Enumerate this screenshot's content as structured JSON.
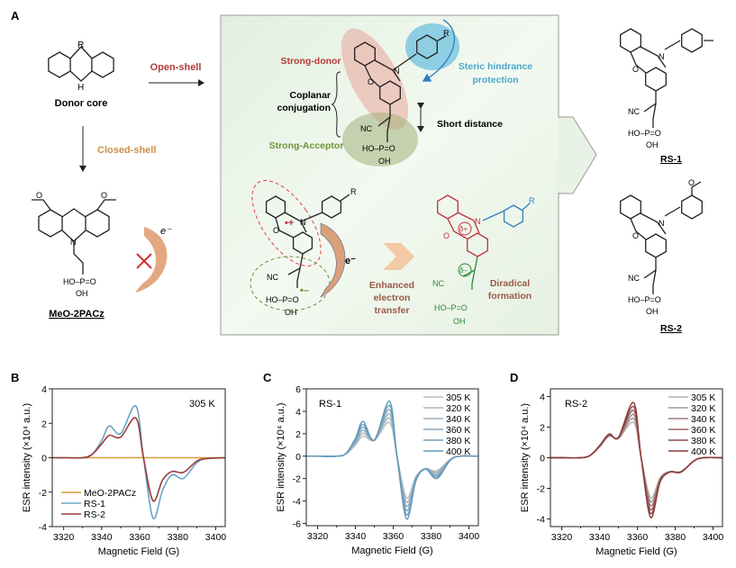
{
  "panel_a": {
    "letter": "A",
    "donor_core": "Donor core",
    "r_label": "R",
    "nh_label": "H",
    "n_label": "N",
    "o_label": "O",
    "open_shell": "Open-shell",
    "closed_shell": "Closed-shell",
    "meo_label": "MeO-2PACz",
    "electron": "e⁻",
    "phosphonic": "HO–P=O",
    "oh": "OH",
    "nc": "NC",
    "strong_donor": "Strong-donor",
    "coplanar_1": "Coplanar",
    "coplanar_2": "conjugation",
    "strong_acceptor": "Strong-Acceptor",
    "steric_1": "Steric hindrance",
    "steric_2": "protection",
    "short_distance": "Short distance",
    "radical_cation": "•+",
    "radical_anion": "•–",
    "enhanced_1": "Enhanced",
    "enhanced_2": "electron",
    "enhanced_3": "transfer",
    "delta_plus": "δ+",
    "delta_minus": "δ–",
    "diradical_1": "Diradical",
    "diradical_2": "formation",
    "rs1": "RS-1",
    "rs2": "RS-2",
    "colors": {
      "donor": "#b8393a",
      "acceptor": "#6e9438",
      "steric": "#4aa8cc",
      "closed": "#c8904a",
      "transfer": "#9a5a48"
    }
  },
  "chart_data": [
    {
      "panel": "B",
      "type": "line",
      "xlabel": "Magnetic Field (G)",
      "ylabel": "ESR intensity (×10⁴ a.u.)",
      "xlim": [
        3314,
        3405
      ],
      "ylim": [
        -4,
        4
      ],
      "xticks": [
        3320,
        3340,
        3360,
        3380,
        3400
      ],
      "yticks": [
        -4,
        -2,
        0,
        2,
        4
      ],
      "annotation": "305 K",
      "legend": "bottom-left",
      "x": [
        3314,
        3320,
        3330,
        3335,
        3340,
        3344,
        3350,
        3358,
        3362,
        3367,
        3372,
        3377,
        3383,
        3390,
        3395,
        3405
      ],
      "series": [
        {
          "name": "MeO-2PACz",
          "color": "#d89a3a",
          "values": [
            0,
            0,
            0,
            0,
            0,
            0,
            0,
            0,
            0,
            0,
            0,
            0,
            0,
            0,
            0,
            0
          ]
        },
        {
          "name": "RS-1",
          "color": "#6aa5c4",
          "values": [
            0,
            0,
            0,
            0.2,
            1.0,
            1.85,
            1.4,
            3.0,
            0,
            -3.5,
            -1.9,
            -1.0,
            -1.2,
            -0.3,
            -0.05,
            0
          ]
        },
        {
          "name": "RS-2",
          "color": "#9b3c3c",
          "values": [
            0,
            0,
            0,
            0.2,
            0.8,
            1.3,
            1.2,
            2.3,
            0,
            -2.5,
            -1.3,
            -0.8,
            -0.85,
            -0.2,
            -0.05,
            0
          ]
        }
      ]
    },
    {
      "panel": "C",
      "type": "line",
      "xlabel": "Magnetic Field (G)",
      "ylabel": "ESR intensity (×10⁴ a.u.)",
      "xlim": [
        3314,
        3405
      ],
      "ylim": [
        -6.2,
        6
      ],
      "xticks": [
        3320,
        3340,
        3360,
        3380,
        3400
      ],
      "yticks": [
        -6,
        -4,
        -2,
        0,
        2,
        4,
        6
      ],
      "annotation": "RS-1",
      "legend": "top-right",
      "x": [
        3314,
        3320,
        3330,
        3335,
        3340,
        3344,
        3350,
        3358,
        3362,
        3367,
        3372,
        3377,
        3383,
        3390,
        3395,
        3405
      ],
      "series": [
        {
          "name": "305 K",
          "color": "#b8bcc0",
          "values": [
            0,
            0,
            0,
            0.2,
            1.0,
            1.8,
            1.4,
            3.0,
            0,
            -3.7,
            -1.8,
            -1.1,
            -1.3,
            -0.3,
            0,
            0
          ]
        },
        {
          "name": "320 K",
          "color": "#a7b5bf",
          "values": [
            0,
            0,
            0,
            0.21,
            1.12,
            2.06,
            1.41,
            3.38,
            0,
            -4.08,
            -1.88,
            -1.11,
            -1.44,
            -0.32,
            0,
            0
          ]
        },
        {
          "name": "340 K",
          "color": "#96aebe",
          "values": [
            0,
            0,
            0,
            0.22,
            1.24,
            2.32,
            1.42,
            3.76,
            0,
            -4.46,
            -1.96,
            -1.12,
            -1.58,
            -0.34,
            0,
            0
          ]
        },
        {
          "name": "360 K",
          "color": "#85a7bd",
          "values": [
            0,
            0,
            0,
            0.23,
            1.36,
            2.58,
            1.43,
            4.14,
            0,
            -4.84,
            -2.04,
            -1.13,
            -1.72,
            -0.36,
            0,
            0
          ]
        },
        {
          "name": "380 K",
          "color": "#74a0bc",
          "values": [
            0,
            0,
            0,
            0.24,
            1.48,
            2.84,
            1.44,
            4.52,
            0,
            -5.22,
            -2.12,
            -1.14,
            -1.86,
            -0.38,
            0,
            0
          ]
        },
        {
          "name": "400 K",
          "color": "#5f9aba",
          "values": [
            0,
            0,
            0,
            0.25,
            1.6,
            3.1,
            1.45,
            4.9,
            0,
            -5.6,
            -2.2,
            -1.15,
            -2.0,
            -0.4,
            0,
            0
          ]
        }
      ]
    },
    {
      "panel": "D",
      "type": "line",
      "xlabel": "Magnetic Field (G)",
      "ylabel": "ESR intensity (×10⁴ a.u.)",
      "xlim": [
        3314,
        3405
      ],
      "ylim": [
        -4.5,
        4.5
      ],
      "xticks": [
        3320,
        3340,
        3360,
        3380,
        3400
      ],
      "yticks": [
        -4,
        -2,
        0,
        2,
        4
      ],
      "annotation": "RS-2",
      "legend": "top-right",
      "x": [
        3314,
        3320,
        3330,
        3335,
        3340,
        3345,
        3350,
        3358,
        3362,
        3367,
        3372,
        3377,
        3383,
        3390,
        3395,
        3405
      ],
      "series": [
        {
          "name": "305 K",
          "color": "#bbb4b4",
          "values": [
            0,
            0,
            0,
            0.15,
            0.7,
            1.4,
            1.25,
            2.3,
            0,
            -2.6,
            -1.3,
            -0.9,
            -0.9,
            -0.2,
            0,
            0
          ]
        },
        {
          "name": "320 K",
          "color": "#a99797",
          "values": [
            0,
            0,
            0,
            0.15,
            0.72,
            1.43,
            1.27,
            2.56,
            0,
            -2.86,
            -1.36,
            -0.91,
            -0.91,
            -0.2,
            0,
            0
          ]
        },
        {
          "name": "340 K",
          "color": "#a07f7f",
          "values": [
            0,
            0,
            0,
            0.15,
            0.74,
            1.46,
            1.29,
            2.82,
            0,
            -3.12,
            -1.42,
            -0.92,
            -0.92,
            -0.2,
            0,
            0
          ]
        },
        {
          "name": "360 K",
          "color": "#976666",
          "values": [
            0,
            0,
            0,
            0.15,
            0.76,
            1.49,
            1.31,
            3.08,
            0,
            -3.38,
            -1.48,
            -0.93,
            -0.93,
            -0.2,
            0,
            0
          ]
        },
        {
          "name": "380 K",
          "color": "#8e4f4f",
          "values": [
            0,
            0,
            0,
            0.15,
            0.78,
            1.52,
            1.33,
            3.34,
            0,
            -3.64,
            -1.54,
            -0.94,
            -0.94,
            -0.2,
            0,
            0
          ]
        },
        {
          "name": "400 K",
          "color": "#8b3a3a",
          "values": [
            0,
            0,
            0,
            0.15,
            0.8,
            1.55,
            1.35,
            3.6,
            0,
            -3.9,
            -1.6,
            -0.95,
            -0.95,
            -0.2,
            0,
            0
          ]
        }
      ]
    }
  ]
}
